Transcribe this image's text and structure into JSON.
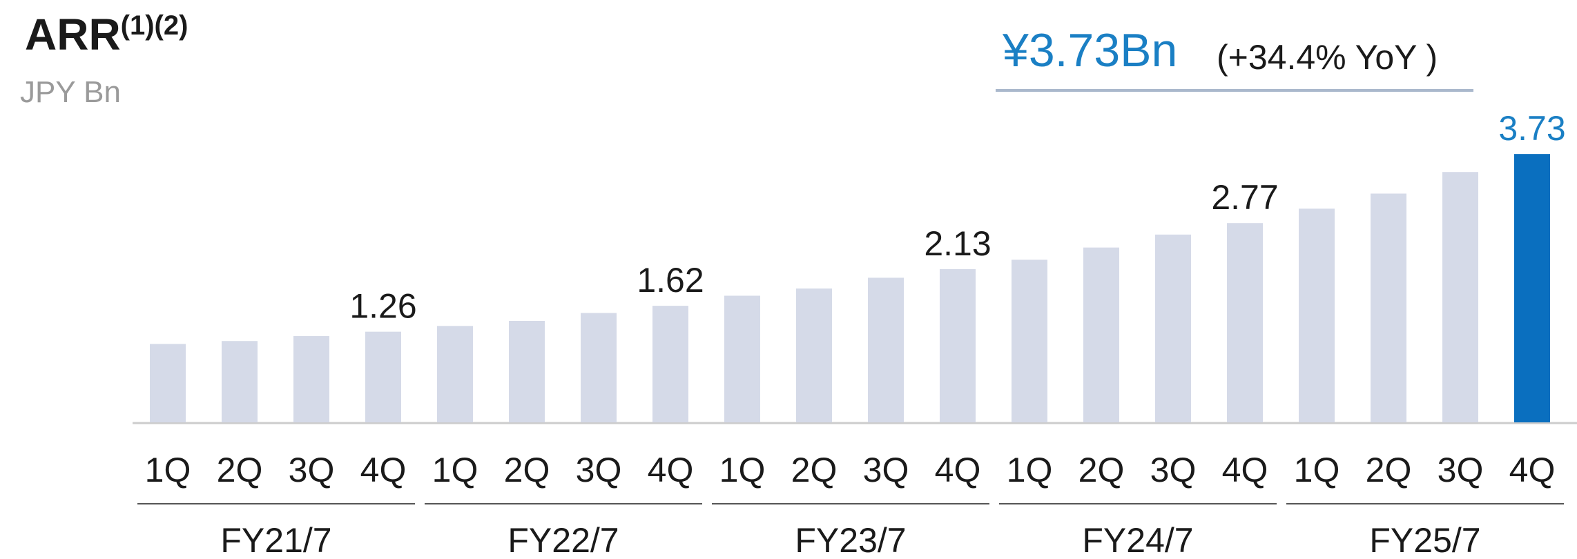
{
  "chart_data": {
    "type": "bar",
    "title": "ARR",
    "title_superscript": "(1)(2)",
    "subtitle": "JPY Bn",
    "callout": {
      "value_text": "¥3.73Bn",
      "change_text": "(+34.4% YoY )"
    },
    "categories": [
      "1Q",
      "2Q",
      "3Q",
      "4Q",
      "1Q",
      "2Q",
      "3Q",
      "4Q",
      "1Q",
      "2Q",
      "3Q",
      "4Q",
      "1Q",
      "2Q",
      "3Q",
      "4Q",
      "1Q",
      "2Q",
      "3Q",
      "4Q"
    ],
    "groups": [
      "FY21/7",
      "FY22/7",
      "FY23/7",
      "FY24/7",
      "FY25/7"
    ],
    "values": [
      1.09,
      1.13,
      1.2,
      1.26,
      1.34,
      1.41,
      1.52,
      1.62,
      1.76,
      1.86,
      2.01,
      2.13,
      2.26,
      2.43,
      2.61,
      2.77,
      2.97,
      3.18,
      3.48,
      3.73
    ],
    "value_labels": [
      null,
      null,
      null,
      "1.26",
      null,
      null,
      null,
      "1.62",
      null,
      null,
      null,
      "2.13",
      null,
      null,
      null,
      "2.77",
      null,
      null,
      null,
      "3.73"
    ],
    "colors": [
      "#d5dae8",
      "#d5dae8",
      "#d5dae8",
      "#d5dae8",
      "#d5dae8",
      "#d5dae8",
      "#d5dae8",
      "#d5dae8",
      "#d5dae8",
      "#d5dae8",
      "#d5dae8",
      "#d5dae8",
      "#d5dae8",
      "#d5dae8",
      "#d5dae8",
      "#d5dae8",
      "#d5dae8",
      "#d5dae8",
      "#d5dae8",
      "#0a6fbf"
    ],
    "ylim": [
      0,
      4
    ]
  }
}
